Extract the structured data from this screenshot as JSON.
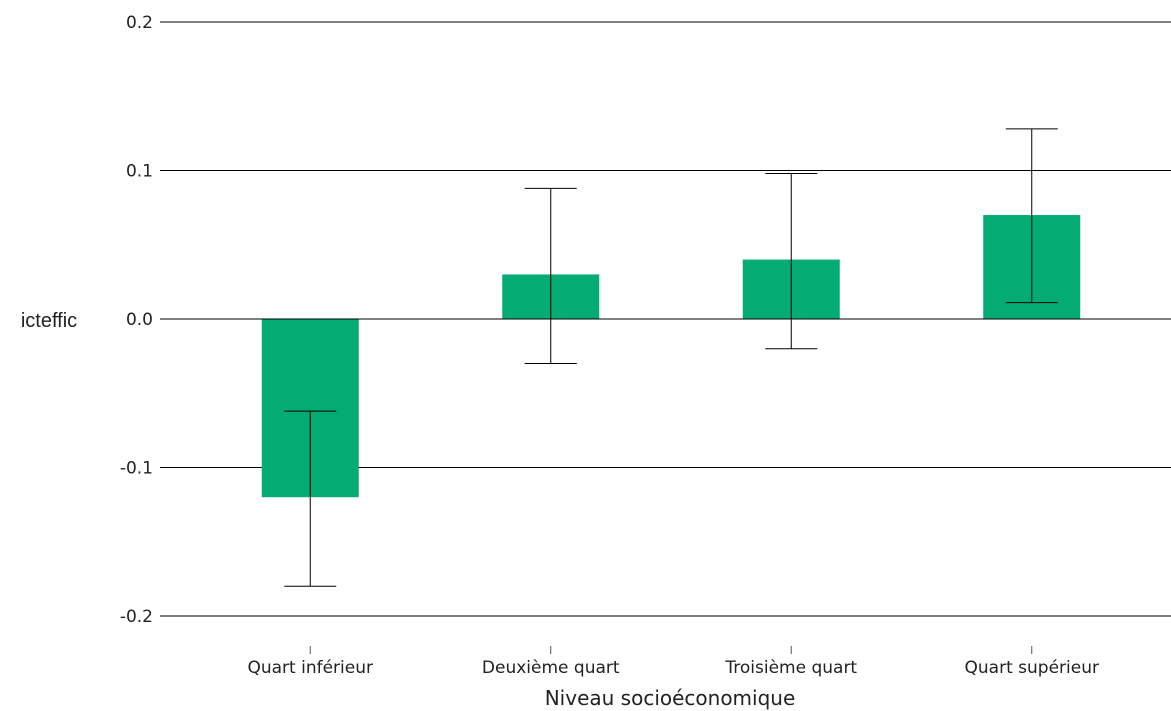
{
  "chart_data": {
    "type": "bar",
    "categories": [
      "Quart inférieur",
      "Deuxième quart",
      "Troisième quart",
      "Quart supérieur"
    ],
    "values": [
      -0.12,
      0.03,
      0.04,
      0.07
    ],
    "error_low": [
      -0.18,
      -0.03,
      -0.02,
      0.011
    ],
    "error_high": [
      -0.062,
      0.088,
      0.098,
      0.128
    ],
    "xlabel": "Niveau socioéconomique",
    "ylabel": "icteffic",
    "ylim": [
      -0.2,
      0.2
    ],
    "yticks": [
      -0.2,
      -0.1,
      0.0,
      0.1,
      0.2
    ],
    "ytick_labels": [
      "-0.2",
      "-0.1",
      "0.0",
      "0.1",
      "0.2"
    ],
    "grid": true,
    "bar_color": "#04ab72",
    "gridline_color": "#000000",
    "errorbar_color": "#000000"
  }
}
